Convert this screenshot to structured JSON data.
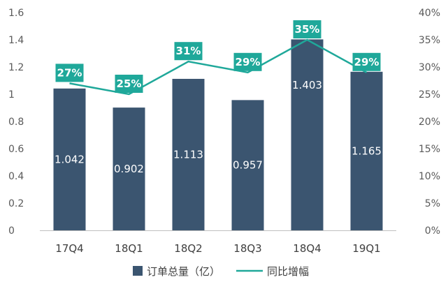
{
  "chart_data": {
    "type": "bar",
    "categories": [
      "17Q4",
      "18Q1",
      "18Q2",
      "18Q3",
      "18Q4",
      "19Q1"
    ],
    "series": [
      {
        "name": "订单总量（亿）",
        "type": "bar",
        "axis": "left",
        "values": [
          1.042,
          0.902,
          1.113,
          0.957,
          1.403,
          1.165
        ],
        "labels": [
          "1.042",
          "0.902",
          "1.113",
          "0.957",
          "1.403",
          "1.165"
        ],
        "color": "#3b5570"
      },
      {
        "name": "同比增幅",
        "type": "line",
        "axis": "right",
        "values": [
          27,
          25,
          31,
          29,
          35,
          29
        ],
        "labels": [
          "27%",
          "25%",
          "31%",
          "29%",
          "35%",
          "29%"
        ],
        "color": "#1fa89a"
      }
    ],
    "y_left": {
      "min": 0,
      "max": 1.6,
      "ticks": [
        "0",
        "0.2",
        "0.4",
        "0.6",
        "0.8",
        "1",
        "1.2",
        "1.4",
        "1.6"
      ]
    },
    "y_right": {
      "min": 0,
      "max": 40,
      "ticks": [
        "0%",
        "5%",
        "10%",
        "15%",
        "20%",
        "25%",
        "30%",
        "35%",
        "40%"
      ]
    },
    "grid": false,
    "legend": "bottom"
  }
}
